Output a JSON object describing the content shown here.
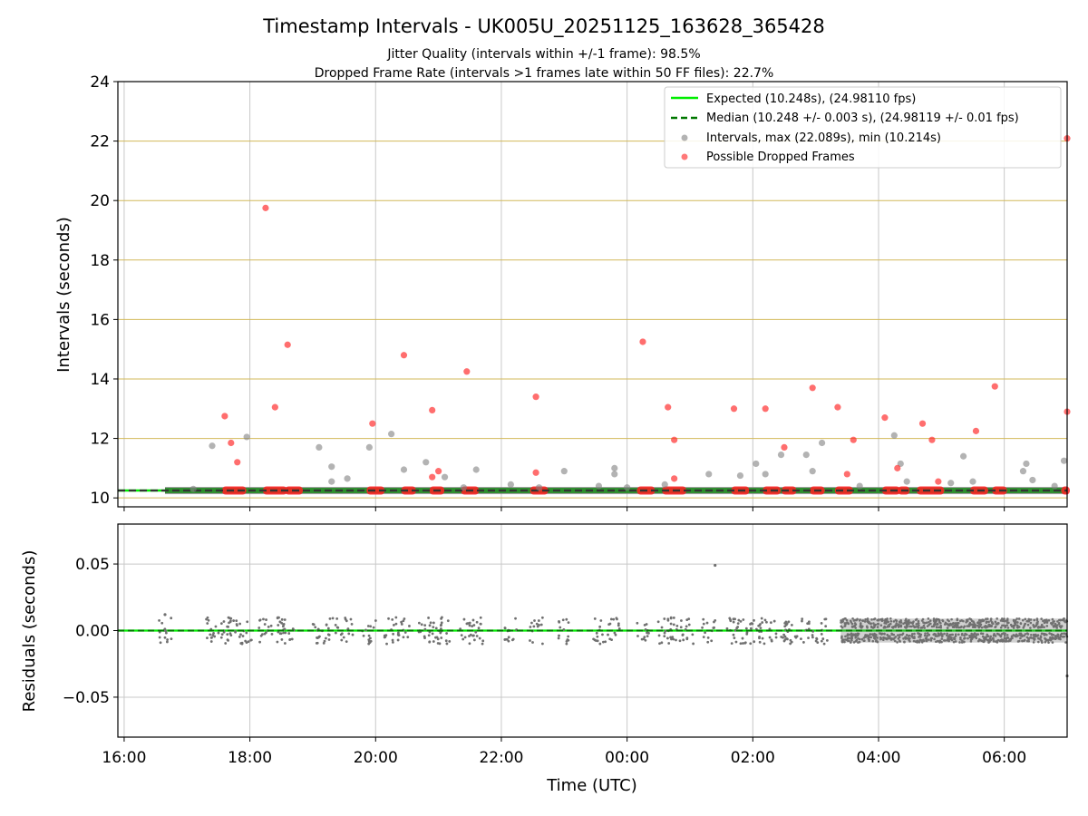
{
  "chart_data": {
    "type": "scatter",
    "title": "Timestamp Intervals - UK005U_20251125_163628_365428",
    "subtitle_lines": [
      "Jitter Quality (intervals within +/-1 frame): 98.5%",
      "Dropped Frame Rate (intervals >1 frames late within 50 FF files): 22.7%"
    ],
    "xlabel": "Time (UTC)",
    "x_ticks": [
      "16:00",
      "18:00",
      "20:00",
      "22:00",
      "00:00",
      "02:00",
      "04:00",
      "06:00"
    ],
    "x_range_hours": [
      15.9,
      31.0
    ],
    "top_panel": {
      "ylabel": "Intervals (seconds)",
      "ylim": [
        9.7,
        24
      ],
      "yticks": [
        "10",
        "12",
        "14",
        "16",
        "18",
        "20",
        "22",
        "24"
      ],
      "expected_interval": 10.248,
      "median_interval": 10.248,
      "legend": [
        "Expected (10.248s), (24.98110 fps)",
        "Median (10.248 +/- 0.003 s), (24.98119 +/- 0.01 fps)",
        "Intervals, max (22.089s), min (10.214s)",
        "Possible Dropped Frames"
      ],
      "intervals": [
        [
          17.4,
          11.75
        ],
        [
          17.95,
          12.05
        ],
        [
          19.1,
          11.7
        ],
        [
          19.3,
          11.05
        ],
        [
          19.3,
          10.55
        ],
        [
          19.55,
          10.65
        ],
        [
          19.9,
          11.7
        ],
        [
          20.25,
          12.15
        ],
        [
          20.45,
          10.95
        ],
        [
          20.8,
          11.2
        ],
        [
          21.1,
          10.7
        ],
        [
          21.6,
          10.95
        ],
        [
          22.15,
          10.45
        ],
        [
          23.0,
          10.9
        ],
        [
          23.55,
          10.4
        ],
        [
          23.8,
          11.0
        ],
        [
          23.8,
          10.8
        ],
        [
          24.6,
          10.45
        ],
        [
          25.3,
          10.8
        ],
        [
          25.8,
          10.75
        ],
        [
          26.05,
          11.15
        ],
        [
          26.2,
          10.8
        ],
        [
          26.45,
          11.45
        ],
        [
          26.85,
          11.45
        ],
        [
          26.95,
          10.9
        ],
        [
          27.1,
          11.85
        ],
        [
          27.7,
          10.4
        ],
        [
          28.25,
          12.1
        ],
        [
          28.35,
          11.15
        ],
        [
          28.45,
          10.55
        ],
        [
          29.35,
          11.4
        ],
        [
          29.5,
          10.55
        ],
        [
          29.15,
          10.5
        ],
        [
          30.3,
          10.9
        ],
        [
          30.35,
          11.15
        ],
        [
          30.45,
          10.6
        ],
        [
          30.8,
          10.4
        ],
        [
          30.95,
          11.25
        ],
        [
          17.1,
          10.3
        ],
        [
          21.4,
          10.35
        ],
        [
          22.6,
          10.35
        ],
        [
          24.0,
          10.35
        ]
      ],
      "dropped": [
        [
          17.6,
          12.75
        ],
        [
          17.7,
          11.85
        ],
        [
          17.8,
          11.2
        ],
        [
          18.25,
          19.75
        ],
        [
          18.4,
          13.05
        ],
        [
          18.6,
          15.15
        ],
        [
          19.95,
          12.5
        ],
        [
          20.45,
          14.8
        ],
        [
          20.9,
          12.95
        ],
        [
          20.9,
          10.7
        ],
        [
          21.0,
          10.9
        ],
        [
          21.45,
          14.25
        ],
        [
          22.55,
          13.4
        ],
        [
          22.55,
          10.85
        ],
        [
          24.25,
          15.25
        ],
        [
          24.65,
          13.05
        ],
        [
          24.75,
          11.95
        ],
        [
          24.75,
          10.65
        ],
        [
          25.7,
          13.0
        ],
        [
          26.2,
          13.0
        ],
        [
          26.5,
          11.7
        ],
        [
          26.95,
          13.7
        ],
        [
          27.35,
          13.05
        ],
        [
          27.5,
          10.8
        ],
        [
          27.6,
          11.95
        ],
        [
          28.1,
          12.7
        ],
        [
          28.3,
          11.0
        ],
        [
          28.7,
          12.5
        ],
        [
          28.85,
          11.95
        ],
        [
          28.95,
          10.55
        ],
        [
          29.55,
          12.25
        ],
        [
          29.85,
          13.75
        ],
        [
          31.0,
          22.09
        ],
        [
          31.0,
          12.9
        ]
      ],
      "dropped_baseline_segments": [
        [
          17.6,
          17.9
        ],
        [
          18.25,
          18.55
        ],
        [
          18.6,
          18.8
        ],
        [
          19.9,
          20.1
        ],
        [
          20.45,
          20.6
        ],
        [
          20.9,
          21.05
        ],
        [
          21.4,
          21.6
        ],
        [
          22.5,
          22.7
        ],
        [
          24.2,
          24.4
        ],
        [
          24.6,
          24.9
        ],
        [
          25.7,
          25.9
        ],
        [
          26.2,
          26.4
        ],
        [
          26.5,
          26.65
        ],
        [
          26.95,
          27.1
        ],
        [
          27.35,
          27.55
        ],
        [
          28.1,
          28.3
        ],
        [
          28.35,
          28.45
        ],
        [
          28.65,
          29.0
        ],
        [
          29.5,
          29.7
        ],
        [
          29.85,
          30.0
        ],
        [
          30.95,
          31.0
        ]
      ]
    },
    "bottom_panel": {
      "ylabel": "Residuals (seconds)",
      "ylim": [
        -0.08,
        0.08
      ],
      "yticks": [
        "0.05",
        "0.00",
        "−0.05"
      ],
      "ytick_values": [
        0.05,
        0.0,
        -0.05
      ],
      "outliers": [
        [
          16.65,
          0.012
        ],
        [
          25.4,
          0.049
        ],
        [
          31.0,
          -0.034
        ]
      ],
      "dense_region_start": 27.4,
      "residual_clusters": [
        16.65,
        17.4,
        17.6,
        17.75,
        17.95,
        18.25,
        18.45,
        18.6,
        19.1,
        19.3,
        19.55,
        19.9,
        20.25,
        20.45,
        20.8,
        20.95,
        21.1,
        21.45,
        21.6,
        22.15,
        22.55,
        23.0,
        23.55,
        23.8,
        24.25,
        24.6,
        24.75,
        24.95,
        25.3,
        25.7,
        25.8,
        26.05,
        26.2,
        26.45,
        26.6,
        26.85,
        27.1
      ]
    }
  }
}
